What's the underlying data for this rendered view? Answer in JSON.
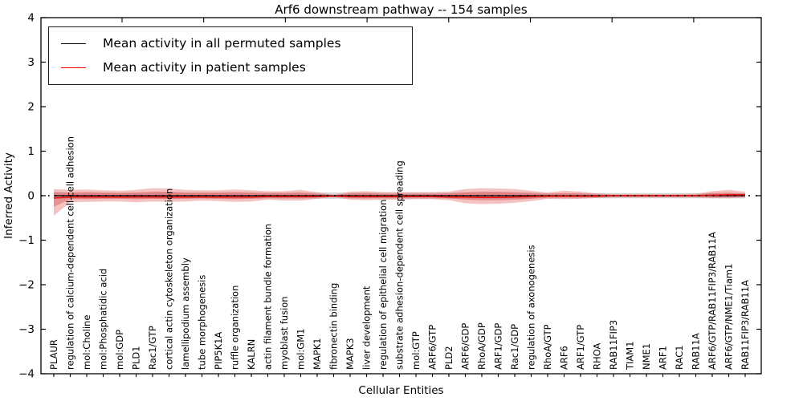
{
  "title": "Arf6 downstream pathway -- 154 samples",
  "axes": {
    "x_label": "Cellular Entities",
    "y_label": "Inferred Activity",
    "y_tick_labels": [
      "4",
      "3",
      "2",
      "1",
      "0",
      "−1",
      "−2",
      "−3",
      "−4"
    ],
    "y_tick_values": [
      4,
      3,
      2,
      1,
      0,
      -1,
      -2,
      -3,
      -4
    ]
  },
  "legend": [
    {
      "label": "Mean activity in all permuted samples",
      "color": "#000000"
    },
    {
      "label": "Mean activity in patient samples",
      "color": "#ff0000"
    }
  ],
  "chart_data": {
    "type": "line",
    "title": "Arf6 downstream pathway -- 154 samples",
    "xlabel": "Cellular Entities",
    "ylabel": "Inferred Activity",
    "ylim": [
      -4,
      4
    ],
    "grid": false,
    "legend_position": "upper left",
    "categories": [
      "PLAUR",
      "regulation of calcium-dependent cell-cell adhesion",
      "mol:Choline",
      "mol:Phosphatidic acid",
      "mol:GDP",
      "PLD1",
      "Rac1/GTP",
      "cortical actin cytoskeleton organization",
      "lamellipodium assembly",
      "tube morphogenesis",
      "PIP5K1A",
      "ruffle organization",
      "KALRN",
      "actin filament bundle formation",
      "myoblast fusion",
      "mol:GM1",
      "MAPK1",
      "fibronectin binding",
      "MAPK3",
      "liver development",
      "regulation of epithelial cell migration",
      "substrate adhesion-dependent cell spreading",
      "mol:GTP",
      "ARF6/GTP",
      "PLD2",
      "ARF6/GDP",
      "RhoA/GDP",
      "ARF1/GDP",
      "Rac1/GDP",
      "regulation of axonogenesis",
      "RhoA/GTP",
      "ARF6",
      "ARF1/GTP",
      "RHOA",
      "RAB11FIP3",
      "TIAM1",
      "NME1",
      "ARF1",
      "RAC1",
      "RAB11A",
      "ARF6/GTP/RAB11FIP3/RAB11A",
      "ARF6/GTP/NME1/Tiam1",
      "RAB11FIP3/RAB11A"
    ],
    "series": [
      {
        "name": "Mean activity in all permuted samples",
        "color": "#000000",
        "style": "solid, with dotted zero reference line",
        "values": [
          0,
          0,
          0,
          0,
          0,
          0,
          0,
          0,
          0,
          0,
          0,
          0,
          0,
          0,
          0,
          0,
          0,
          0,
          0,
          0,
          0,
          0,
          0,
          0,
          0,
          0,
          0,
          0,
          0,
          0,
          0,
          0,
          0,
          0,
          0,
          0,
          0,
          0,
          0,
          0,
          0,
          0,
          0
        ]
      },
      {
        "name": "Mean activity in patient samples",
        "color": "#ff0000",
        "style": "solid",
        "values": [
          -0.05,
          -0.03,
          -0.03,
          -0.03,
          -0.03,
          -0.03,
          -0.03,
          -0.03,
          -0.03,
          -0.03,
          -0.03,
          -0.03,
          -0.03,
          -0.02,
          -0.02,
          -0.02,
          -0.02,
          -0.01,
          -0.02,
          -0.02,
          -0.02,
          -0.02,
          -0.02,
          -0.02,
          -0.03,
          -0.03,
          -0.04,
          -0.04,
          -0.03,
          -0.02,
          -0.01,
          -0.01,
          -0.01,
          -0.01,
          0,
          0,
          0,
          0,
          0,
          0,
          0.01,
          0.02,
          0.02
        ]
      }
    ],
    "bands": [
      {
        "name": "patient-samples-spread-outer",
        "color": "#e97777",
        "opacity": 0.45,
        "upper": [
          0.15,
          0.13,
          0.14,
          0.12,
          0.11,
          0.13,
          0.17,
          0.16,
          0.13,
          0.12,
          0.12,
          0.14,
          0.12,
          0.1,
          0.1,
          0.13,
          0.08,
          0.02,
          0.09,
          0.1,
          0.08,
          0.08,
          0.08,
          0.08,
          0.09,
          0.15,
          0.17,
          0.16,
          0.15,
          0.11,
          0.07,
          0.11,
          0.09,
          0.05,
          0.03,
          0.03,
          0.03,
          0.03,
          0.03,
          0.04,
          0.1,
          0.13,
          0.09
        ],
        "lower": [
          -0.45,
          -0.15,
          -0.14,
          -0.13,
          -0.13,
          -0.15,
          -0.13,
          -0.14,
          -0.13,
          -0.11,
          -0.12,
          -0.14,
          -0.13,
          -0.09,
          -0.11,
          -0.11,
          -0.07,
          -0.02,
          -0.09,
          -0.1,
          -0.09,
          -0.09,
          -0.08,
          -0.08,
          -0.1,
          -0.17,
          -0.19,
          -0.18,
          -0.16,
          -0.12,
          -0.07,
          -0.08,
          -0.07,
          -0.05,
          -0.04,
          -0.04,
          -0.04,
          -0.04,
          -0.04,
          -0.04,
          -0.06,
          -0.06,
          -0.04
        ]
      },
      {
        "name": "patient-samples-spread-inner",
        "color": "#e06060",
        "opacity": 0.5,
        "upper": [
          0.08,
          0.07,
          0.08,
          0.07,
          0.06,
          0.07,
          0.09,
          0.09,
          0.07,
          0.07,
          0.07,
          0.08,
          0.07,
          0.06,
          0.06,
          0.07,
          0.04,
          0.01,
          0.05,
          0.06,
          0.04,
          0.04,
          0.04,
          0.04,
          0.05,
          0.08,
          0.09,
          0.09,
          0.08,
          0.06,
          0.04,
          0.06,
          0.05,
          0.03,
          0.02,
          0.02,
          0.02,
          0.02,
          0.02,
          0.02,
          0.06,
          0.07,
          0.05
        ],
        "lower": [
          -0.25,
          -0.08,
          -0.08,
          -0.07,
          -0.07,
          -0.08,
          -0.07,
          -0.08,
          -0.07,
          -0.06,
          -0.07,
          -0.08,
          -0.07,
          -0.05,
          -0.06,
          -0.06,
          -0.04,
          -0.01,
          -0.05,
          -0.06,
          -0.05,
          -0.05,
          -0.04,
          -0.04,
          -0.06,
          -0.09,
          -0.1,
          -0.1,
          -0.09,
          -0.07,
          -0.04,
          -0.04,
          -0.04,
          -0.03,
          -0.02,
          -0.02,
          -0.02,
          -0.02,
          -0.02,
          -0.02,
          -0.03,
          -0.03,
          -0.02
        ]
      },
      {
        "name": "permuted-samples-spread",
        "color": "#999999",
        "opacity": 0.4,
        "upper": [
          0.08,
          0.07,
          0.07,
          0.07,
          0.07,
          0.07,
          0.07,
          0.07,
          0.07,
          0.07,
          0.07,
          0.07,
          0.07,
          0.07,
          0.07,
          0.07,
          0.07,
          0.07,
          0.07,
          0.07,
          0.07,
          0.07,
          0.07,
          0.07,
          0.07,
          0.07,
          0.07,
          0.07,
          0.07,
          0.07,
          0.06,
          0.06,
          0.06,
          0.06,
          0.06,
          0.06,
          0.06,
          0.06,
          0.06,
          0.06,
          0.06,
          0.06,
          0.06
        ],
        "lower": [
          -0.08,
          -0.07,
          -0.07,
          -0.07,
          -0.07,
          -0.07,
          -0.07,
          -0.07,
          -0.07,
          -0.07,
          -0.07,
          -0.07,
          -0.07,
          -0.07,
          -0.07,
          -0.07,
          -0.07,
          -0.07,
          -0.07,
          -0.07,
          -0.07,
          -0.07,
          -0.07,
          -0.07,
          -0.07,
          -0.07,
          -0.07,
          -0.07,
          -0.07,
          -0.07,
          -0.06,
          -0.06,
          -0.06,
          -0.06,
          -0.06,
          -0.06,
          -0.06,
          -0.06,
          -0.06,
          -0.06,
          -0.06,
          -0.06,
          -0.06
        ]
      }
    ]
  }
}
